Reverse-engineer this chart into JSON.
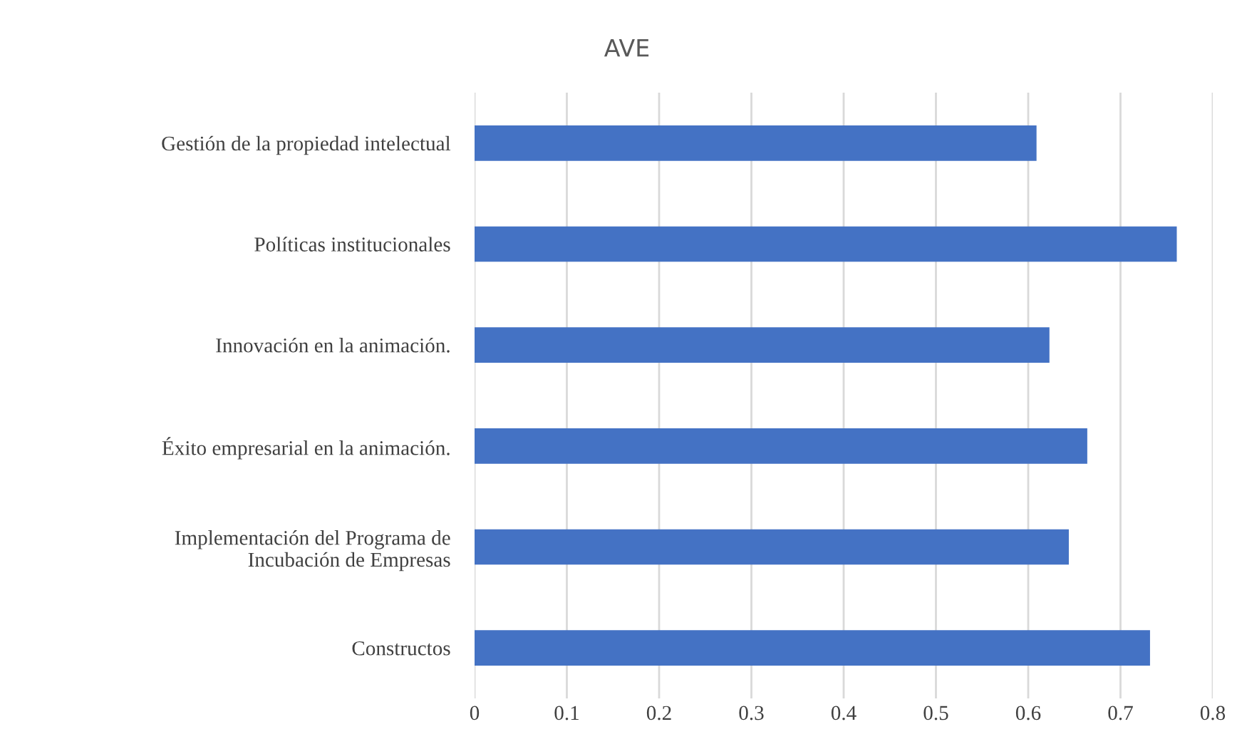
{
  "chart_data": {
    "type": "bar",
    "orientation": "horizontal",
    "title": "AVE",
    "categories": [
      "Gestión de la propiedad intelectual",
      "Políticas institucionales",
      "Innovación en la animación.",
      "Éxito empresarial en la animación.",
      "Implementación del Programa de\nIncubación de Empresas",
      "Constructos"
    ],
    "values": [
      0.609,
      0.761,
      0.623,
      0.664,
      0.644,
      0.732
    ],
    "color": "#4472c4",
    "xlim": [
      0,
      0.8
    ],
    "xticks": [
      0,
      0.1,
      0.2,
      0.3,
      0.4,
      0.5,
      0.6,
      0.7,
      0.8
    ],
    "grid": "x",
    "legend": false
  }
}
